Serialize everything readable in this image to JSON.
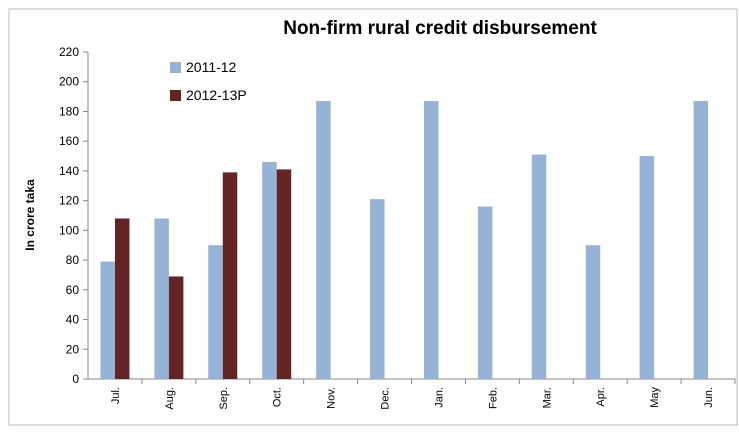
{
  "chart_data": {
    "type": "bar",
    "title": "Non-firm rural credit disbursement",
    "ylabel": "In crore taka",
    "categories": [
      "Jul.",
      "Aug.",
      "Sep.",
      "Oct.",
      "Nov.",
      "Dec.",
      "Jan.",
      "Feb.",
      "Mar.",
      "Apr.",
      "May",
      "Jun."
    ],
    "series": [
      {
        "name": "2011-12",
        "color": "#95b3d7",
        "values": [
          79,
          108,
          90,
          146,
          187,
          121,
          187,
          116,
          151,
          90,
          150,
          187
        ]
      },
      {
        "name": "2012-13P",
        "color": "#632523",
        "values": [
          108,
          69,
          139,
          141,
          null,
          null,
          null,
          null,
          null,
          null,
          null,
          null
        ]
      }
    ],
    "ylim": [
      0,
      220
    ],
    "yticks": [
      0,
      20,
      40,
      60,
      80,
      100,
      120,
      140,
      160,
      180,
      200,
      220
    ],
    "legend": "upper left"
  }
}
